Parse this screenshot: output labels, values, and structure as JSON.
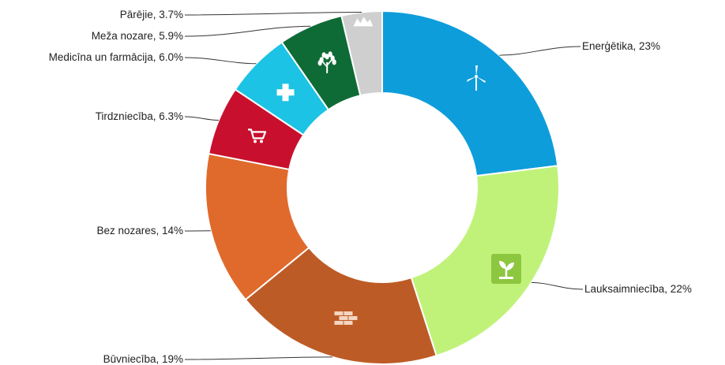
{
  "chart_data": {
    "type": "pie",
    "variant": "donut",
    "title": "",
    "legend": "none",
    "slices": [
      {
        "label": "Enerģētika, 23%",
        "name": "Enerģētika",
        "value": 23,
        "color": "#0e9ddb",
        "icon": "wind-turbine-icon"
      },
      {
        "label": "Lauksaimniecība, 22%",
        "name": "Lauksaimniecība",
        "value": 22,
        "color": "#c0f27a",
        "icon": "sprout-icon"
      },
      {
        "label": "Būvniecība, 19%",
        "name": "Būvniecība",
        "value": 19,
        "color": "#bd5b26",
        "icon": "bricks-icon"
      },
      {
        "label": "Bez nozares, 14%",
        "name": "Bez nozares",
        "value": 14,
        "color": "#e06a2c",
        "icon": ""
      },
      {
        "label": "Tirdzniecība, 6.3%",
        "name": "Tirdzniecība",
        "value": 6.3,
        "color": "#c8102e",
        "icon": "shopping-cart-icon"
      },
      {
        "label": "Medicīna un farmācija, 6.0%",
        "name": "Medicīna un farmācija",
        "value": 6.0,
        "color": "#1cc3e4",
        "icon": "medical-cross-icon"
      },
      {
        "label": "Meža nozare, 5.9%",
        "name": "Meža nozare",
        "value": 5.9,
        "color": "#0f6b36",
        "icon": "tree-icon"
      },
      {
        "label": "Pārējie, 3.7%",
        "name": "Pārējie",
        "value": 3.7,
        "color": "#cfcfcf",
        "icon": "mountains-icon"
      }
    ]
  }
}
